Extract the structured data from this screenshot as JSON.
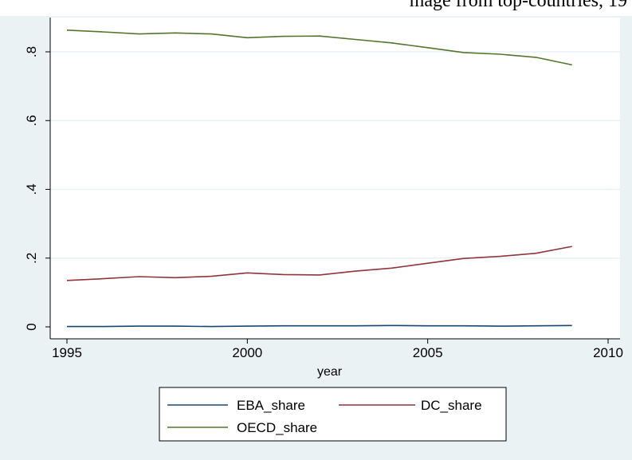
{
  "top_strip_text": "mage from top-countries, 19",
  "colors": {
    "frame_bg": "#eaf2f3",
    "plot_bg": "#ffffff",
    "grid": "#eaf2f3",
    "EBA_share": "#1a476f",
    "DC_share": "#90353b",
    "OECD_share": "#55752f"
  },
  "chart_data": {
    "type": "line",
    "title": "",
    "xlabel": "year",
    "ylabel": "",
    "xlim": [
      1995,
      2010
    ],
    "ylim": [
      0,
      0.9
    ],
    "xticks": [
      1995,
      2000,
      2005,
      2010
    ],
    "xtick_labels": [
      "1995",
      "2000",
      "2005",
      "2010"
    ],
    "yticks": [
      0,
      0.2,
      0.4,
      0.6,
      0.8
    ],
    "ytick_labels": [
      "0",
      ".2",
      ".4",
      ".6",
      ".8"
    ],
    "grid": true,
    "legend_placement": "bottom",
    "x": [
      1995,
      1996,
      1997,
      1998,
      1999,
      2000,
      2001,
      2002,
      2003,
      2004,
      2005,
      2006,
      2007,
      2008,
      2009
    ],
    "series": [
      {
        "name": "EBA_share",
        "values": [
          0.001,
          0.001,
          0.002,
          0.002,
          0.001,
          0.002,
          0.003,
          0.003,
          0.003,
          0.004,
          0.003,
          0.003,
          0.002,
          0.003,
          0.004
        ]
      },
      {
        "name": "DC_share",
        "values": [
          0.135,
          0.14,
          0.146,
          0.143,
          0.147,
          0.157,
          0.152,
          0.151,
          0.162,
          0.171,
          0.185,
          0.199,
          0.205,
          0.214,
          0.234
        ]
      },
      {
        "name": "OECD_share",
        "values": [
          0.863,
          0.858,
          0.852,
          0.855,
          0.852,
          0.841,
          0.845,
          0.846,
          0.836,
          0.826,
          0.812,
          0.798,
          0.793,
          0.784,
          0.762
        ]
      }
    ]
  }
}
